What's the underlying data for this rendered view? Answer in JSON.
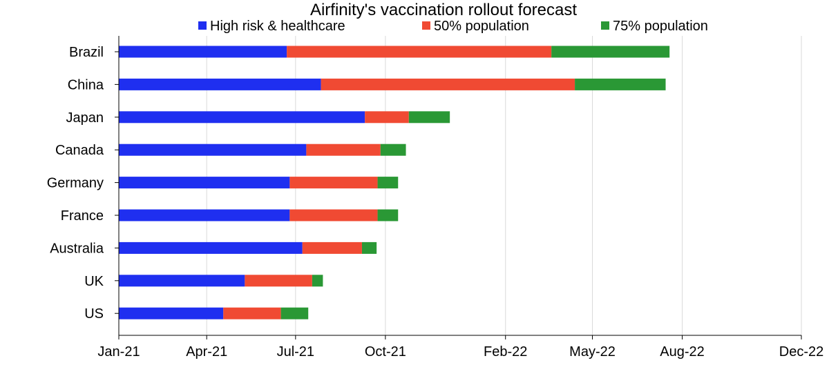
{
  "chart_data": {
    "type": "bar",
    "orientation": "horizontal",
    "stacked": true,
    "title": "Airfinity's vaccination rollout forecast",
    "xlabel": "",
    "ylabel": "",
    "legend_position": "top",
    "grid": "vertical",
    "x_axis": {
      "unit": "date",
      "range": [
        "2021-01-01",
        "2022-12-31"
      ],
      "ticks": [
        {
          "label": "Jan-21",
          "date": "2021-01-01"
        },
        {
          "label": "Apr-21",
          "date": "2021-04-01"
        },
        {
          "label": "Jul-21",
          "date": "2021-07-01"
        },
        {
          "label": "Oct-21",
          "date": "2021-10-01"
        },
        {
          "label": "Feb-22",
          "date": "2022-02-01"
        },
        {
          "label": "May-22",
          "date": "2022-05-01"
        },
        {
          "label": "Aug-22",
          "date": "2022-08-01"
        },
        {
          "label": "Dec-22",
          "date": "2022-12-01"
        }
      ]
    },
    "categories": [
      "Brazil",
      "China",
      "Japan",
      "Canada",
      "Germany",
      "France",
      "Australia",
      "UK",
      "US"
    ],
    "series": [
      {
        "name": "High risk & healthcare",
        "color": "#1f2ff0",
        "values": [
          "2021-06-22",
          "2021-07-27",
          "2021-09-10",
          "2021-07-12",
          "2021-06-25",
          "2021-06-25",
          "2021-07-08",
          "2021-05-10",
          "2021-04-18"
        ]
      },
      {
        "name": "50% population",
        "color": "#f04a33",
        "values": [
          "2022-03-20",
          "2022-04-13",
          "2021-10-25",
          "2021-09-26",
          "2021-09-23",
          "2021-09-23",
          "2021-09-07",
          "2021-07-18",
          "2021-06-16"
        ]
      },
      {
        "name": "75% population",
        "color": "#2a9835",
        "values": [
          "2022-07-19",
          "2022-07-15",
          "2021-12-06",
          "2021-10-22",
          "2021-10-14",
          "2021-10-14",
          "2021-09-22",
          "2021-07-29",
          "2021-07-14"
        ]
      }
    ]
  }
}
